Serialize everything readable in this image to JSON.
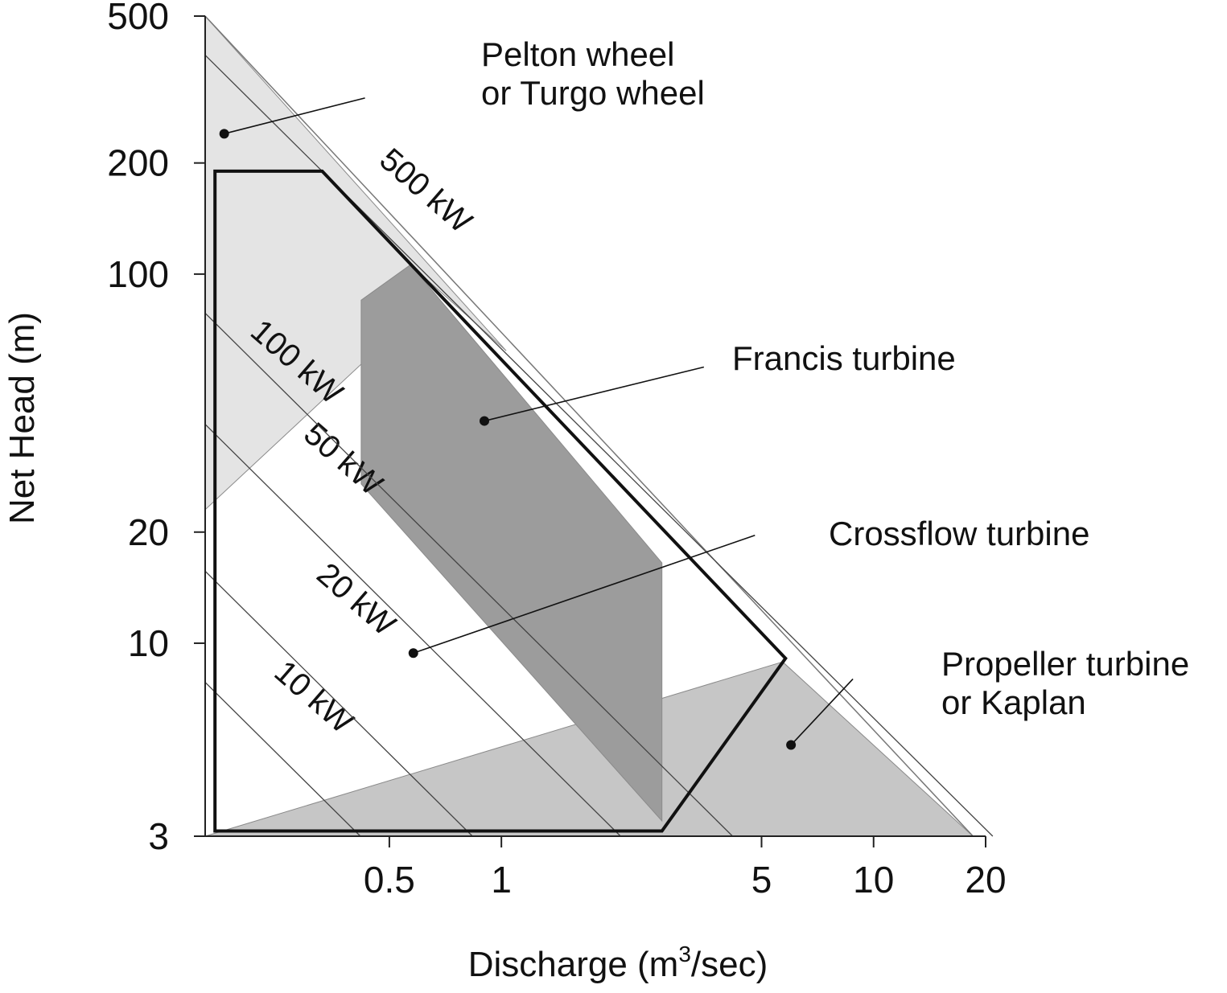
{
  "chart_data": {
    "type": "area",
    "xlabel_main": "Discharge (m",
    "xlabel_sup": "3",
    "xlabel_tail": "/sec)",
    "ylabel": "Net Head (m)",
    "x_scale": "log",
    "y_scale": "log",
    "xlim": [
      0.16,
      20
    ],
    "ylim": [
      3,
      500
    ],
    "x_ticks": [
      {
        "value": 0.5,
        "label": "0.5"
      },
      {
        "value": 1,
        "label": "1"
      },
      {
        "value": 5,
        "label": "5"
      },
      {
        "value": 10,
        "label": "10"
      },
      {
        "value": 20,
        "label": "20"
      }
    ],
    "y_ticks": [
      {
        "value": 3,
        "label": "3"
      },
      {
        "value": 10,
        "label": "10"
      },
      {
        "value": 20,
        "label": "20"
      },
      {
        "value": 100,
        "label": "100"
      },
      {
        "value": 200,
        "label": "200"
      },
      {
        "value": 500,
        "label": "500"
      }
    ],
    "grid": false,
    "power_lines": [
      {
        "kw": 10,
        "label": "10 kW",
        "label_at": [
          0.3,
          6.8
        ]
      },
      {
        "kw": 20,
        "label": "20 kW",
        "label_at": [
          0.39,
          12.5
        ]
      },
      {
        "kw": 50,
        "label": "50 kW",
        "label_at": [
          0.36,
          30
        ]
      },
      {
        "kw": 100,
        "label": "100 kW",
        "label_at": [
          0.27,
          55
        ]
      },
      {
        "kw": 500,
        "label": "500 kW",
        "label_at": [
          0.6,
          160
        ]
      }
    ],
    "regions": [
      {
        "name": "Pelton",
        "color": "#e4e4e4",
        "points": [
          [
            0.16,
            500
          ],
          [
            0.16,
            23
          ],
          [
            0.42,
            57
          ],
          [
            0.57,
            106
          ],
          [
            1.03,
            62
          ]
        ]
      },
      {
        "name": "Kaplan",
        "color": "#c6c6c6",
        "points": [
          [
            0.16,
            3
          ],
          [
            5.7,
            8.9
          ],
          [
            18.5,
            3
          ]
        ]
      },
      {
        "name": "Francis",
        "color": "#9c9c9c",
        "points": [
          [
            0.42,
            85
          ],
          [
            0.57,
            106
          ],
          [
            2.7,
            16.5
          ],
          [
            2.7,
            3.3
          ],
          [
            0.42,
            27
          ]
        ]
      }
    ],
    "envelope": [
      [
        0.17,
        190
      ],
      [
        0.33,
        190
      ],
      [
        5.8,
        9.1
      ],
      [
        2.7,
        3.1
      ],
      [
        0.17,
        3.1
      ]
    ],
    "annotations": [
      {
        "lines": [
          "Pelton wheel",
          "or Turgo wheel"
        ],
        "point": [
          0.18,
          240
        ],
        "line_to": [
          0.43,
          300
        ]
      },
      {
        "lines": [
          "Francis turbine"
        ],
        "point": [
          0.9,
          40
        ],
        "line_to": [
          3.5,
          56
        ]
      },
      {
        "lines": [
          "Crossflow turbine"
        ],
        "point": [
          0.58,
          9.4
        ],
        "line_to": [
          4.8,
          19.6
        ]
      },
      {
        "lines": [
          "Propeller turbine",
          "or Kaplan"
        ],
        "point": [
          6.0,
          5.3
        ],
        "line_to": [
          8.8,
          8.0
        ]
      }
    ]
  }
}
